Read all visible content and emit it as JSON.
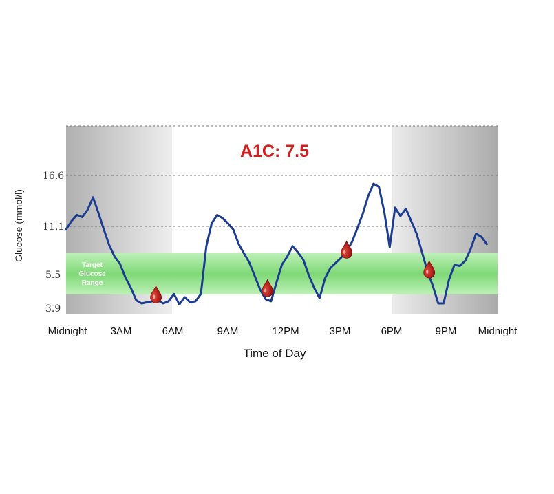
{
  "chart_data": {
    "type": "line",
    "title": "A1C: 7.5",
    "xlabel": "Time of Day",
    "ylabel": "Glucose (mmol/l)",
    "x_tick_labels": [
      "Midnight",
      "3AM",
      "6AM",
      "9AM",
      "12PM",
      "3PM",
      "6PM",
      "9PM",
      "Midnight"
    ],
    "x_tick_hours": [
      0,
      3,
      6,
      9,
      12,
      15,
      18,
      21,
      24
    ],
    "y_tick_labels": [
      "16.6",
      "11.1",
      "5.5",
      "3.9"
    ],
    "y_ticks": [
      16.6,
      11.1,
      5.5,
      3.9
    ],
    "ylim": [
      3.9,
      21.5
    ],
    "xlim": [
      0,
      24
    ],
    "target_band": {
      "label_lines": [
        "Target",
        "Glucose",
        "Range"
      ],
      "low": 5.0,
      "high": 9.0
    },
    "series": [
      {
        "points": [
          [
            0.0,
            11.4
          ],
          [
            0.3,
            12.2
          ],
          [
            0.6,
            12.8
          ],
          [
            0.9,
            12.6
          ],
          [
            1.2,
            13.3
          ],
          [
            1.5,
            14.5
          ],
          [
            1.8,
            13.0
          ],
          [
            2.1,
            11.4
          ],
          [
            2.4,
            9.9
          ],
          [
            2.7,
            8.8
          ],
          [
            3.0,
            8.1
          ],
          [
            3.3,
            6.8
          ],
          [
            3.6,
            5.8
          ],
          [
            3.9,
            4.6
          ],
          [
            4.2,
            4.3
          ],
          [
            4.5,
            4.4
          ],
          [
            4.8,
            4.5
          ],
          [
            5.1,
            4.6
          ],
          [
            5.4,
            4.3
          ],
          [
            5.7,
            4.5
          ],
          [
            6.0,
            5.2
          ],
          [
            6.3,
            4.2
          ],
          [
            6.6,
            4.9
          ],
          [
            6.9,
            4.4
          ],
          [
            7.2,
            4.5
          ],
          [
            7.5,
            5.2
          ],
          [
            7.8,
            9.8
          ],
          [
            8.1,
            12.0
          ],
          [
            8.4,
            12.8
          ],
          [
            8.7,
            12.5
          ],
          [
            9.0,
            12.0
          ],
          [
            9.3,
            11.4
          ],
          [
            9.6,
            10.0
          ],
          [
            9.9,
            9.1
          ],
          [
            10.2,
            8.2
          ],
          [
            10.5,
            6.9
          ],
          [
            10.8,
            5.6
          ],
          [
            11.1,
            4.7
          ],
          [
            11.4,
            4.5
          ],
          [
            11.7,
            6.3
          ],
          [
            12.0,
            8.0
          ],
          [
            12.3,
            8.8
          ],
          [
            12.6,
            9.8
          ],
          [
            12.9,
            9.2
          ],
          [
            13.2,
            8.5
          ],
          [
            13.5,
            7.0
          ],
          [
            13.8,
            5.8
          ],
          [
            14.1,
            4.8
          ],
          [
            14.4,
            6.7
          ],
          [
            14.7,
            7.7
          ],
          [
            15.0,
            8.2
          ],
          [
            15.3,
            8.7
          ],
          [
            15.6,
            9.3
          ],
          [
            15.9,
            10.2
          ],
          [
            16.2,
            11.5
          ],
          [
            16.5,
            12.9
          ],
          [
            16.8,
            14.6
          ],
          [
            17.1,
            15.8
          ],
          [
            17.4,
            15.5
          ],
          [
            17.7,
            13.1
          ],
          [
            18.0,
            9.7
          ],
          [
            18.3,
            13.5
          ],
          [
            18.6,
            12.7
          ],
          [
            18.9,
            13.4
          ],
          [
            19.2,
            12.2
          ],
          [
            19.5,
            11.0
          ],
          [
            19.8,
            9.2
          ],
          [
            20.1,
            7.4
          ],
          [
            20.4,
            6.0
          ],
          [
            20.7,
            4.3
          ],
          [
            21.0,
            4.3
          ],
          [
            21.3,
            6.6
          ],
          [
            21.6,
            8.0
          ],
          [
            21.9,
            7.9
          ],
          [
            22.2,
            8.4
          ],
          [
            22.5,
            9.5
          ],
          [
            22.8,
            11.0
          ],
          [
            23.1,
            10.7
          ],
          [
            23.4,
            10.0
          ]
        ]
      }
    ],
    "blood_drop_markers": [
      [
        5.0,
        5.0
      ],
      [
        11.2,
        5.6
      ],
      [
        15.6,
        9.3
      ],
      [
        20.2,
        7.4
      ]
    ],
    "colors": {
      "line": "#1c3d8f",
      "title": "#d11f1f",
      "target_band": "#8fdf88",
      "target_band_edge": "#b8eeb2",
      "night_shade_dark": "#b4b4b4",
      "night_shade_light": "#ececec",
      "drop": "#a50e0e",
      "grid": "#777777"
    },
    "grid": "horizontal dashed"
  }
}
